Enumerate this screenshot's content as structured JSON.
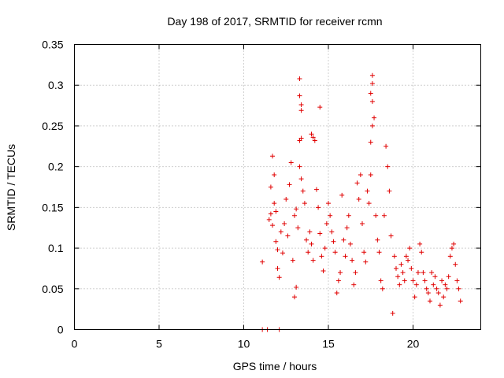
{
  "chart_data": {
    "type": "scatter",
    "title": "Day 198 of 2017, SRMTID for receiver rcmn",
    "xlabel": "GPS time / hours",
    "ylabel": "SRMTID / TECUs",
    "xlim": [
      0,
      24
    ],
    "ylim": [
      0,
      0.35
    ],
    "x_ticks": [
      0,
      5,
      10,
      15,
      20
    ],
    "x_tick_labels": [
      "0",
      "5",
      "10",
      "15",
      "20"
    ],
    "y_ticks": [
      0,
      0.05,
      0.1,
      0.15,
      0.2,
      0.25,
      0.3,
      0.35
    ],
    "y_tick_labels": [
      "0",
      "0.05",
      "0.1",
      "0.15",
      "0.2",
      "0.25",
      "0.3",
      "0.35"
    ],
    "grid": true,
    "marker": "plus",
    "color": "#e00000",
    "series": [
      {
        "name": "SRMTID",
        "points": [
          [
            11.1,
            0.083
          ],
          [
            11.1,
            0.0
          ],
          [
            11.4,
            0.0
          ],
          [
            12.1,
            0.0
          ],
          [
            11.5,
            0.135
          ],
          [
            11.6,
            0.142
          ],
          [
            11.7,
            0.128
          ],
          [
            11.8,
            0.155
          ],
          [
            11.6,
            0.175
          ],
          [
            11.7,
            0.213
          ],
          [
            11.8,
            0.19
          ],
          [
            11.9,
            0.108
          ],
          [
            12.0,
            0.098
          ],
          [
            12.1,
            0.064
          ],
          [
            12.0,
            0.075
          ],
          [
            11.9,
            0.145
          ],
          [
            12.2,
            0.12
          ],
          [
            12.3,
            0.094
          ],
          [
            12.4,
            0.13
          ],
          [
            12.5,
            0.16
          ],
          [
            12.6,
            0.115
          ],
          [
            12.7,
            0.178
          ],
          [
            12.8,
            0.205
          ],
          [
            12.9,
            0.085
          ],
          [
            13.0,
            0.14
          ],
          [
            13.1,
            0.148
          ],
          [
            13.2,
            0.125
          ],
          [
            13.1,
            0.052
          ],
          [
            13.0,
            0.04
          ],
          [
            13.3,
            0.2
          ],
          [
            13.4,
            0.185
          ],
          [
            13.5,
            0.17
          ],
          [
            13.6,
            0.155
          ],
          [
            13.3,
            0.232
          ],
          [
            13.4,
            0.235
          ],
          [
            13.3,
            0.287
          ],
          [
            13.4,
            0.276
          ],
          [
            13.4,
            0.269
          ],
          [
            13.3,
            0.308
          ],
          [
            13.7,
            0.11
          ],
          [
            13.8,
            0.095
          ],
          [
            13.9,
            0.12
          ],
          [
            14.0,
            0.105
          ],
          [
            14.1,
            0.085
          ],
          [
            14.0,
            0.24
          ],
          [
            14.1,
            0.236
          ],
          [
            14.2,
            0.232
          ],
          [
            14.3,
            0.172
          ],
          [
            14.4,
            0.15
          ],
          [
            14.5,
            0.273
          ],
          [
            14.5,
            0.118
          ],
          [
            14.6,
            0.09
          ],
          [
            14.7,
            0.072
          ],
          [
            14.8,
            0.1
          ],
          [
            14.9,
            0.13
          ],
          [
            15.0,
            0.155
          ],
          [
            15.1,
            0.14
          ],
          [
            15.2,
            0.12
          ],
          [
            15.3,
            0.108
          ],
          [
            15.4,
            0.095
          ],
          [
            15.5,
            0.045
          ],
          [
            15.6,
            0.06
          ],
          [
            15.7,
            0.07
          ],
          [
            15.8,
            0.165
          ],
          [
            15.9,
            0.11
          ],
          [
            16.0,
            0.09
          ],
          [
            16.1,
            0.125
          ],
          [
            16.2,
            0.14
          ],
          [
            16.3,
            0.105
          ],
          [
            16.4,
            0.085
          ],
          [
            16.5,
            0.055
          ],
          [
            16.6,
            0.07
          ],
          [
            16.7,
            0.18
          ],
          [
            16.8,
            0.16
          ],
          [
            16.9,
            0.19
          ],
          [
            17.0,
            0.13
          ],
          [
            17.1,
            0.095
          ],
          [
            17.2,
            0.083
          ],
          [
            17.3,
            0.17
          ],
          [
            17.4,
            0.155
          ],
          [
            17.5,
            0.19
          ],
          [
            17.6,
            0.312
          ],
          [
            17.6,
            0.302
          ],
          [
            17.5,
            0.29
          ],
          [
            17.6,
            0.28
          ],
          [
            17.7,
            0.26
          ],
          [
            17.6,
            0.25
          ],
          [
            17.5,
            0.23
          ],
          [
            17.8,
            0.14
          ],
          [
            17.9,
            0.11
          ],
          [
            18.0,
            0.095
          ],
          [
            18.1,
            0.06
          ],
          [
            18.2,
            0.05
          ],
          [
            18.3,
            0.14
          ],
          [
            18.4,
            0.225
          ],
          [
            18.5,
            0.2
          ],
          [
            18.6,
            0.17
          ],
          [
            18.7,
            0.115
          ],
          [
            18.8,
            0.02
          ],
          [
            18.9,
            0.09
          ],
          [
            19.0,
            0.075
          ],
          [
            19.1,
            0.065
          ],
          [
            19.2,
            0.055
          ],
          [
            19.3,
            0.08
          ],
          [
            19.4,
            0.07
          ],
          [
            19.5,
            0.06
          ],
          [
            19.6,
            0.09
          ],
          [
            19.7,
            0.085
          ],
          [
            19.8,
            0.1
          ],
          [
            19.9,
            0.075
          ],
          [
            20.0,
            0.06
          ],
          [
            20.1,
            0.04
          ],
          [
            20.2,
            0.055
          ],
          [
            20.3,
            0.07
          ],
          [
            20.4,
            0.105
          ],
          [
            20.5,
            0.095
          ],
          [
            20.6,
            0.07
          ],
          [
            20.7,
            0.06
          ],
          [
            20.8,
            0.05
          ],
          [
            20.9,
            0.045
          ],
          [
            21.0,
            0.035
          ],
          [
            21.1,
            0.07
          ],
          [
            21.2,
            0.055
          ],
          [
            21.3,
            0.065
          ],
          [
            21.4,
            0.05
          ],
          [
            21.5,
            0.045
          ],
          [
            21.6,
            0.03
          ],
          [
            21.7,
            0.06
          ],
          [
            21.8,
            0.04
          ],
          [
            21.9,
            0.055
          ],
          [
            22.0,
            0.05
          ],
          [
            22.1,
            0.065
          ],
          [
            22.2,
            0.09
          ],
          [
            22.3,
            0.1
          ],
          [
            22.4,
            0.105
          ],
          [
            22.5,
            0.08
          ],
          [
            22.6,
            0.06
          ],
          [
            22.7,
            0.05
          ],
          [
            22.8,
            0.035
          ]
        ]
      }
    ]
  }
}
